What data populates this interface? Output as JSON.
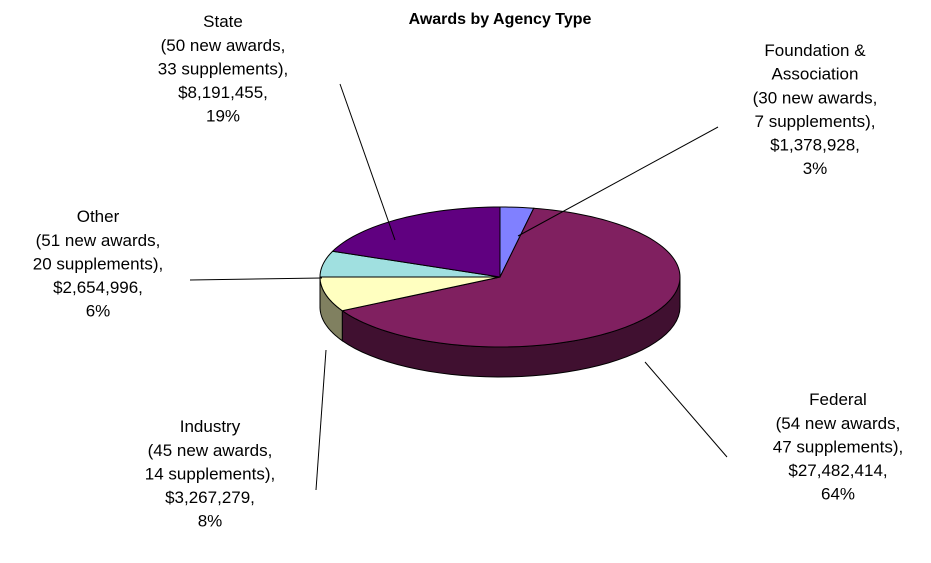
{
  "chart_data": {
    "type": "pie",
    "title": "Awards by Agency Type",
    "categories": [
      "Foundation & Association",
      "Federal",
      "Industry",
      "Other",
      "State"
    ],
    "values": [
      3,
      64,
      8,
      6,
      19
    ],
    "value_labels": [
      "3%",
      "64%",
      "8%",
      "6%",
      "19%"
    ],
    "new_awards": [
      30,
      54,
      45,
      51,
      50
    ],
    "new_awards_labels": [
      "(30 new awards,",
      "(54 new awards,",
      "(45 new awards,",
      "(51 new awards,",
      "(50 new awards,"
    ],
    "supplements": [
      7,
      47,
      14,
      20,
      33
    ],
    "supplements_labels": [
      "7 supplements),",
      "47 supplements),",
      "14 supplements),",
      "20 supplements),",
      "33 supplements),"
    ],
    "amounts": [
      1378928,
      27482414,
      3267279,
      2654996,
      8191455
    ],
    "amount_labels": [
      "$1,378,928,",
      "$27,482,414,",
      "$3,267,279,",
      "$2,654,996,",
      "$8,191,455,"
    ],
    "colors": [
      "#8080ff",
      "#802060",
      "#ffffc0",
      "#a0e0e0",
      "#600080"
    ]
  }
}
